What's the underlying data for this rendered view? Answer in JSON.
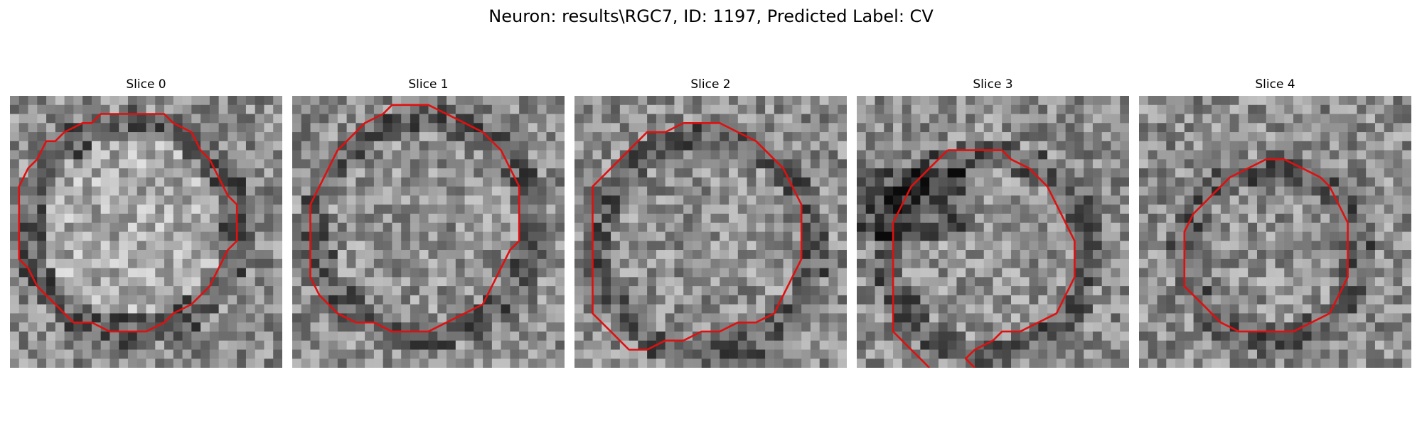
{
  "figure": {
    "title": "Neuron: results\\RGC7, ID: 1197, Predicted Label: CV"
  },
  "colors": {
    "contour": "#e01010",
    "background": "#ffffff"
  },
  "panels": [
    {
      "title": "Slice 0",
      "image_alt": "grayscale microscopy patch of a round cell body, bright interior",
      "contour": [
        [
          11,
          2
        ],
        [
          14,
          2
        ],
        [
          17,
          2
        ],
        [
          18,
          3
        ],
        [
          20,
          4
        ],
        [
          21,
          6
        ],
        [
          22,
          7
        ],
        [
          23,
          9
        ],
        [
          24,
          11
        ],
        [
          25,
          12
        ],
        [
          25,
          14
        ],
        [
          25,
          16
        ],
        [
          24,
          17
        ],
        [
          23,
          19
        ],
        [
          22,
          21
        ],
        [
          21,
          22
        ],
        [
          20,
          23
        ],
        [
          18,
          24
        ],
        [
          17,
          25
        ],
        [
          15,
          26
        ],
        [
          13,
          26
        ],
        [
          11,
          26
        ],
        [
          9,
          25
        ],
        [
          7,
          25
        ],
        [
          6,
          24
        ],
        [
          5,
          23
        ],
        [
          4,
          22
        ],
        [
          3,
          21
        ],
        [
          2,
          19
        ],
        [
          1,
          18
        ],
        [
          1,
          16
        ],
        [
          1,
          14
        ],
        [
          1,
          12
        ],
        [
          1,
          10
        ],
        [
          2,
          8
        ],
        [
          3,
          7
        ],
        [
          4,
          5
        ],
        [
          5,
          5
        ],
        [
          6,
          4
        ],
        [
          8,
          3
        ],
        [
          9,
          3
        ],
        [
          10,
          2
        ],
        [
          11,
          2
        ]
      ]
    },
    {
      "title": "Slice 1",
      "image_alt": "grayscale microscopy patch of a round cell body, mottled interior",
      "contour": [
        [
          11,
          1
        ],
        [
          13,
          1
        ],
        [
          15,
          1
        ],
        [
          17,
          2
        ],
        [
          19,
          3
        ],
        [
          21,
          4
        ],
        [
          23,
          6
        ],
        [
          24,
          8
        ],
        [
          25,
          10
        ],
        [
          25,
          12
        ],
        [
          25,
          14
        ],
        [
          25,
          16
        ],
        [
          24,
          17
        ],
        [
          23,
          19
        ],
        [
          22,
          21
        ],
        [
          21,
          23
        ],
        [
          19,
          24
        ],
        [
          17,
          25
        ],
        [
          15,
          26
        ],
        [
          13,
          26
        ],
        [
          11,
          26
        ],
        [
          9,
          25
        ],
        [
          7,
          25
        ],
        [
          5,
          24
        ],
        [
          4,
          23
        ],
        [
          3,
          22
        ],
        [
          2,
          20
        ],
        [
          2,
          18
        ],
        [
          2,
          16
        ],
        [
          2,
          14
        ],
        [
          2,
          12
        ],
        [
          3,
          10
        ],
        [
          4,
          8
        ],
        [
          5,
          6
        ],
        [
          6,
          5
        ],
        [
          8,
          3
        ],
        [
          10,
          2
        ],
        [
          11,
          1
        ]
      ]
    },
    {
      "title": "Slice 2",
      "image_alt": "grayscale microscopy patch of a round cell body, darker interior",
      "contour": [
        [
          12,
          3
        ],
        [
          14,
          3
        ],
        [
          16,
          3
        ],
        [
          18,
          4
        ],
        [
          20,
          5
        ],
        [
          21,
          6
        ],
        [
          23,
          8
        ],
        [
          24,
          10
        ],
        [
          25,
          12
        ],
        [
          25,
          14
        ],
        [
          25,
          16
        ],
        [
          25,
          18
        ],
        [
          24,
          20
        ],
        [
          23,
          22
        ],
        [
          22,
          24
        ],
        [
          20,
          25
        ],
        [
          18,
          25
        ],
        [
          16,
          26
        ],
        [
          14,
          26
        ],
        [
          12,
          27
        ],
        [
          10,
          27
        ],
        [
          8,
          28
        ],
        [
          6,
          28
        ],
        [
          5,
          27
        ],
        [
          4,
          26
        ],
        [
          3,
          25
        ],
        [
          2,
          24
        ],
        [
          2,
          22
        ],
        [
          2,
          20
        ],
        [
          2,
          18
        ],
        [
          2,
          16
        ],
        [
          2,
          14
        ],
        [
          2,
          12
        ],
        [
          2,
          10
        ],
        [
          3,
          9
        ],
        [
          4,
          8
        ],
        [
          5,
          7
        ],
        [
          6,
          6
        ],
        [
          7,
          5
        ],
        [
          8,
          4
        ],
        [
          10,
          4
        ],
        [
          12,
          3
        ]
      ]
    },
    {
      "title": "Slice 3",
      "image_alt": "grayscale microscopy patch of a round cell body with dark region upper left",
      "contour": [
        [
          10,
          6
        ],
        [
          13,
          6
        ],
        [
          16,
          6
        ],
        [
          17,
          7
        ],
        [
          19,
          8
        ],
        [
          21,
          10
        ],
        [
          22,
          12
        ],
        [
          23,
          14
        ],
        [
          24,
          16
        ],
        [
          24,
          18
        ],
        [
          24,
          20
        ],
        [
          23,
          22
        ],
        [
          22,
          24
        ],
        [
          20,
          25
        ],
        [
          18,
          26
        ],
        [
          16,
          26
        ],
        [
          15,
          27
        ],
        [
          13,
          28
        ],
        [
          12,
          29
        ],
        [
          13,
          30
        ]
      ],
      "contour2": [
        [
          8,
          30
        ],
        [
          7,
          29
        ],
        [
          6,
          28
        ],
        [
          5,
          27
        ],
        [
          4,
          26
        ],
        [
          4,
          24
        ],
        [
          4,
          22
        ],
        [
          4,
          20
        ],
        [
          4,
          18
        ],
        [
          4,
          16
        ],
        [
          4,
          14
        ],
        [
          5,
          12
        ],
        [
          6,
          10
        ],
        [
          7,
          9
        ],
        [
          8,
          8
        ],
        [
          9,
          7
        ],
        [
          10,
          6
        ]
      ]
    },
    {
      "title": "Slice 4",
      "image_alt": "grayscale microscopy patch of a round cell body, lower center",
      "contour": [
        [
          14,
          7
        ],
        [
          16,
          7
        ],
        [
          18,
          8
        ],
        [
          20,
          9
        ],
        [
          21,
          10
        ],
        [
          22,
          12
        ],
        [
          23,
          14
        ],
        [
          23,
          16
        ],
        [
          23,
          18
        ],
        [
          23,
          20
        ],
        [
          22,
          22
        ],
        [
          21,
          24
        ],
        [
          19,
          25
        ],
        [
          17,
          26
        ],
        [
          15,
          26
        ],
        [
          13,
          26
        ],
        [
          11,
          26
        ],
        [
          9,
          25
        ],
        [
          8,
          24
        ],
        [
          7,
          23
        ],
        [
          6,
          22
        ],
        [
          5,
          21
        ],
        [
          5,
          19
        ],
        [
          5,
          17
        ],
        [
          5,
          15
        ],
        [
          6,
          13
        ],
        [
          7,
          12
        ],
        [
          8,
          11
        ],
        [
          9,
          10
        ],
        [
          10,
          9
        ],
        [
          12,
          8
        ],
        [
          14,
          7
        ]
      ]
    }
  ]
}
